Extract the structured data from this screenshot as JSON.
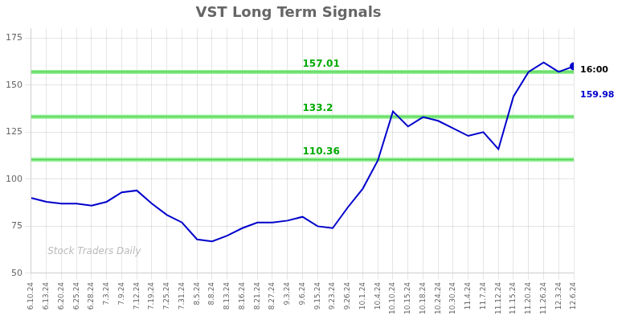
{
  "chart_data": {
    "type": "line",
    "title": "VST Long Term Signals",
    "categories": [
      "6.10.24",
      "6.13.24",
      "6.20.24",
      "6.25.24",
      "6.28.24",
      "7.3.24",
      "7.9.24",
      "7.12.24",
      "7.19.24",
      "7.25.24",
      "7.31.24",
      "8.5.24",
      "8.8.24",
      "8.13.24",
      "8.16.24",
      "8.21.24",
      "8.27.24",
      "9.3.24",
      "9.6.24",
      "9.15.24",
      "9.23.24",
      "9.26.24",
      "10.1.24",
      "10.4.24",
      "10.10.24",
      "10.15.24",
      "10.18.24",
      "10.24.24",
      "10.30.24",
      "11.4.24",
      "11.7.24",
      "11.12.24",
      "11.15.24",
      "11.20.24",
      "11.26.24",
      "12.3.24",
      "12.6.24"
    ],
    "values": [
      90,
      88,
      87,
      87,
      86,
      88,
      93,
      94,
      87,
      81,
      77,
      68,
      67,
      70,
      74,
      77,
      77,
      78,
      80,
      75,
      74,
      85,
      95,
      110,
      136,
      128,
      133,
      131,
      127,
      123,
      125,
      116,
      144,
      157,
      162,
      157,
      160
    ],
    "color": "#0000cc",
    "ylim": [
      50,
      180
    ],
    "yticks": [
      50,
      75,
      100,
      125,
      150,
      175
    ],
    "grid": true,
    "hlines": [
      {
        "y": 157.01,
        "label": "157.01",
        "color": "#00aa00",
        "band_color": "#90ee90"
      },
      {
        "y": 133.2,
        "label": "133.2",
        "color": "#00aa00",
        "band_color": "#90ee90"
      },
      {
        "y": 110.36,
        "label": "110.36",
        "color": "#00aa00",
        "band_color": "#90ee90"
      }
    ],
    "annotations": [
      {
        "text": "16:00",
        "color": "#000000"
      },
      {
        "text": "159.98",
        "color": "#0000cc"
      }
    ],
    "watermark": {
      "text": "Stock Traders Daily",
      "color": "#bbbbbb"
    }
  }
}
